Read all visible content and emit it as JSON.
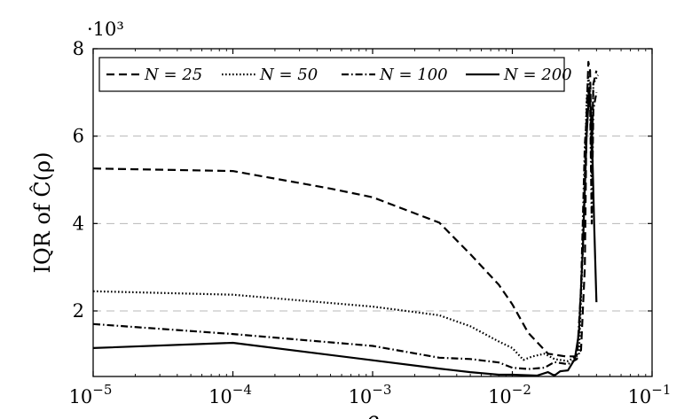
{
  "chart_data": {
    "type": "line",
    "title": "",
    "xlabel": "ρ",
    "ylabel": "IQR of Ĉ(ρ)",
    "x_scale": "log",
    "xlim": [
      1e-05,
      0.1
    ],
    "ylim": [
      500,
      8000
    ],
    "y_multiplier_label": "·10³",
    "x_ticks": [
      {
        "value": 1e-05,
        "base": "10",
        "exp": "−5"
      },
      {
        "value": 0.0001,
        "base": "10",
        "exp": "−4"
      },
      {
        "value": 0.001,
        "base": "10",
        "exp": "−3"
      },
      {
        "value": 0.01,
        "base": "10",
        "exp": "−2"
      },
      {
        "value": 0.1,
        "base": "10",
        "exp": "−1"
      }
    ],
    "y_ticks": [
      {
        "value": 2000,
        "label": "2"
      },
      {
        "value": 4000,
        "label": "4"
      },
      {
        "value": 6000,
        "label": "6"
      },
      {
        "value": 8000,
        "label": "8"
      }
    ],
    "grid": "horizontal-dashed",
    "legend_position": "top",
    "series": [
      {
        "name": "N = 25",
        "style": "dashed",
        "points": [
          [
            1e-05,
            5260
          ],
          [
            0.0001,
            5200
          ],
          [
            0.0005,
            4800
          ],
          [
            0.001,
            4600
          ],
          [
            0.003,
            4020
          ],
          [
            0.005,
            3300
          ],
          [
            0.008,
            2600
          ],
          [
            0.01,
            2150
          ],
          [
            0.013,
            1500
          ],
          [
            0.018,
            1020
          ],
          [
            0.024,
            960
          ],
          [
            0.028,
            960
          ],
          [
            0.031,
            1100
          ],
          [
            0.033,
            3000
          ],
          [
            0.034,
            6500
          ],
          [
            0.035,
            7700
          ],
          [
            0.036,
            7500
          ],
          [
            0.037,
            5500
          ],
          [
            0.038,
            7200
          ],
          [
            0.04,
            7500
          ]
        ]
      },
      {
        "name": "N = 50",
        "style": "dotted",
        "points": [
          [
            1e-05,
            2450
          ],
          [
            0.0001,
            2370
          ],
          [
            0.001,
            2100
          ],
          [
            0.003,
            1900
          ],
          [
            0.005,
            1650
          ],
          [
            0.008,
            1300
          ],
          [
            0.01,
            1150
          ],
          [
            0.012,
            880
          ],
          [
            0.014,
            960
          ],
          [
            0.017,
            1020
          ],
          [
            0.02,
            900
          ],
          [
            0.025,
            850
          ],
          [
            0.03,
            1000
          ],
          [
            0.032,
            3500
          ],
          [
            0.034,
            6800
          ],
          [
            0.035,
            7350
          ],
          [
            0.036,
            7100
          ],
          [
            0.037,
            5000
          ],
          [
            0.038,
            7200
          ],
          [
            0.041,
            7400
          ]
        ]
      },
      {
        "name": "N = 100",
        "style": "dashdot",
        "points": [
          [
            1e-05,
            1700
          ],
          [
            0.0001,
            1470
          ],
          [
            0.001,
            1200
          ],
          [
            0.003,
            930
          ],
          [
            0.005,
            900
          ],
          [
            0.008,
            820
          ],
          [
            0.01,
            700
          ],
          [
            0.013,
            670
          ],
          [
            0.017,
            700
          ],
          [
            0.02,
            830
          ],
          [
            0.025,
            780
          ],
          [
            0.029,
            900
          ],
          [
            0.031,
            2500
          ],
          [
            0.033,
            5800
          ],
          [
            0.035,
            7000
          ],
          [
            0.036,
            6800
          ],
          [
            0.037,
            4000
          ],
          [
            0.038,
            6600
          ],
          [
            0.04,
            7000
          ]
        ]
      },
      {
        "name": "N = 200",
        "style": "solid",
        "points": [
          [
            1e-05,
            1150
          ],
          [
            0.0001,
            1270
          ],
          [
            0.001,
            870
          ],
          [
            0.003,
            680
          ],
          [
            0.005,
            600
          ],
          [
            0.008,
            540
          ],
          [
            0.01,
            540
          ],
          [
            0.015,
            520
          ],
          [
            0.018,
            600
          ],
          [
            0.02,
            520
          ],
          [
            0.022,
            620
          ],
          [
            0.025,
            640
          ],
          [
            0.028,
            900
          ],
          [
            0.03,
            1500
          ],
          [
            0.032,
            3500
          ],
          [
            0.034,
            6000
          ],
          [
            0.0355,
            7100
          ],
          [
            0.037,
            6200
          ],
          [
            0.0385,
            4000
          ],
          [
            0.04,
            2200
          ]
        ]
      }
    ]
  }
}
